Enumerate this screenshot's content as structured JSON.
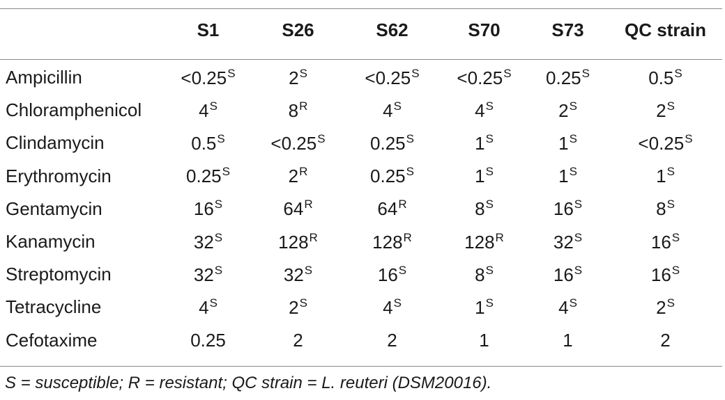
{
  "table": {
    "headers": [
      "",
      "S1",
      "S26",
      "S62",
      "S70",
      "S73",
      "QC strain"
    ],
    "rows": [
      {
        "label": "Ampicillin",
        "cells": [
          {
            "value": "<0.25",
            "flag": "S"
          },
          {
            "value": "2",
            "flag": "S"
          },
          {
            "value": "<0.25",
            "flag": "S"
          },
          {
            "value": "<0.25",
            "flag": "S"
          },
          {
            "value": "0.25",
            "flag": "S"
          },
          {
            "value": "0.5",
            "flag": "S"
          }
        ]
      },
      {
        "label": "Chloramphenicol",
        "cells": [
          {
            "value": "4",
            "flag": "S"
          },
          {
            "value": "8",
            "flag": "R"
          },
          {
            "value": "4",
            "flag": "S"
          },
          {
            "value": "4",
            "flag": "S"
          },
          {
            "value": "2",
            "flag": "S"
          },
          {
            "value": "2",
            "flag": "S"
          }
        ]
      },
      {
        "label": "Clindamycin",
        "cells": [
          {
            "value": "0.5",
            "flag": "S"
          },
          {
            "value": "<0.25",
            "flag": "S"
          },
          {
            "value": "0.25",
            "flag": "S"
          },
          {
            "value": "1",
            "flag": "S"
          },
          {
            "value": "1",
            "flag": "S"
          },
          {
            "value": "<0.25",
            "flag": "S"
          }
        ]
      },
      {
        "label": "Erythromycin",
        "cells": [
          {
            "value": "0.25",
            "flag": "S"
          },
          {
            "value": "2",
            "flag": "R"
          },
          {
            "value": "0.25",
            "flag": "S"
          },
          {
            "value": "1",
            "flag": "S"
          },
          {
            "value": "1",
            "flag": "S"
          },
          {
            "value": "1",
            "flag": "S"
          }
        ]
      },
      {
        "label": "Gentamycin",
        "cells": [
          {
            "value": "16",
            "flag": "S"
          },
          {
            "value": "64",
            "flag": "R"
          },
          {
            "value": "64",
            "flag": "R"
          },
          {
            "value": "8",
            "flag": "S"
          },
          {
            "value": "16",
            "flag": "S"
          },
          {
            "value": "8",
            "flag": "S"
          }
        ]
      },
      {
        "label": "Kanamycin",
        "cells": [
          {
            "value": "32",
            "flag": "S"
          },
          {
            "value": "128",
            "flag": "R"
          },
          {
            "value": "128",
            "flag": "R"
          },
          {
            "value": "128",
            "flag": "R"
          },
          {
            "value": "32",
            "flag": "S"
          },
          {
            "value": "16",
            "flag": "S"
          }
        ]
      },
      {
        "label": "Streptomycin",
        "cells": [
          {
            "value": "32",
            "flag": "S"
          },
          {
            "value": "32",
            "flag": "S"
          },
          {
            "value": "16",
            "flag": "S"
          },
          {
            "value": "8",
            "flag": "S"
          },
          {
            "value": "16",
            "flag": "S"
          },
          {
            "value": "16",
            "flag": "S"
          }
        ]
      },
      {
        "label": "Tetracycline",
        "cells": [
          {
            "value": "4",
            "flag": "S"
          },
          {
            "value": "2",
            "flag": "S"
          },
          {
            "value": "4",
            "flag": "S"
          },
          {
            "value": "1",
            "flag": "S"
          },
          {
            "value": "4",
            "flag": "S"
          },
          {
            "value": "2",
            "flag": "S"
          }
        ]
      },
      {
        "label": "Cefotaxime",
        "cells": [
          {
            "value": "0.25",
            "flag": ""
          },
          {
            "value": "2",
            "flag": ""
          },
          {
            "value": "2",
            "flag": ""
          },
          {
            "value": "1",
            "flag": ""
          },
          {
            "value": "1",
            "flag": ""
          },
          {
            "value": "2",
            "flag": ""
          }
        ]
      }
    ]
  },
  "footnote": "S = susceptible; R = resistant; QC strain = L. reuteri (DSM20016)."
}
